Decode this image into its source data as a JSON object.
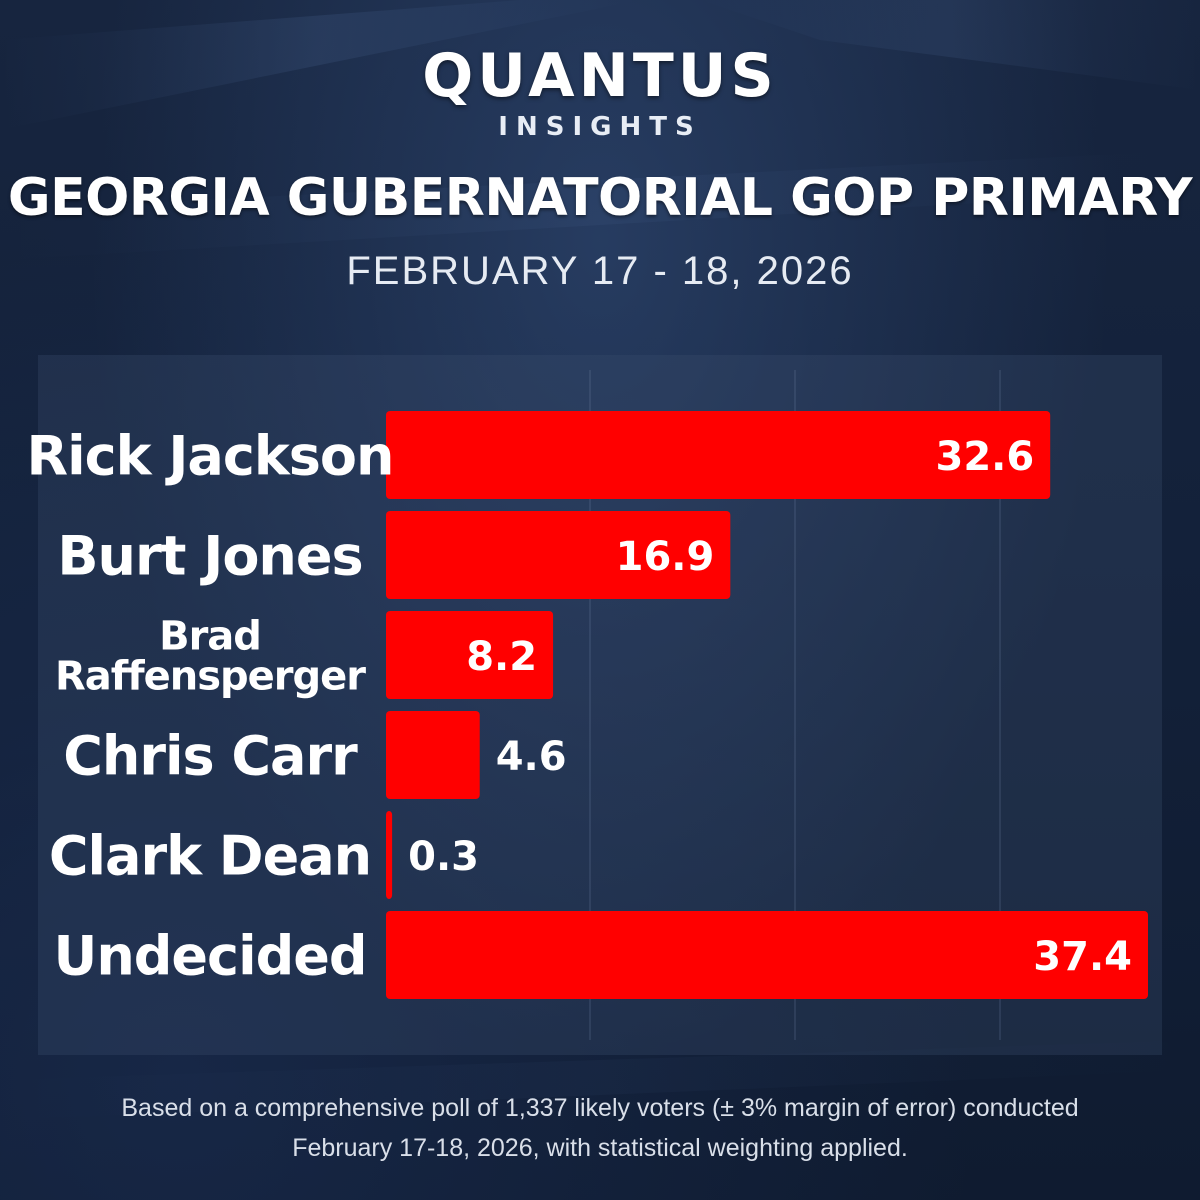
{
  "brand": {
    "name": "QUANTUS",
    "tagline": "INSIGHTS"
  },
  "header": {
    "title": "GEORGIA GUBERNATORIAL GOP PRIMARY",
    "date": "FEBRUARY 17 - 18, 2026"
  },
  "footnote": {
    "line1": "Based on a comprehensive poll of 1,337 likely voters (± 3% margin of error) conducted",
    "line2": "February 17-18, 2026, with statistical weighting applied."
  },
  "colors": {
    "bar": "#ff0000",
    "background": "#13213a",
    "text": "#ffffff"
  },
  "chart_data": {
    "type": "bar",
    "orientation": "horizontal",
    "categories": [
      [
        "Rick Jackson"
      ],
      [
        "Burt Jones"
      ],
      [
        "Brad",
        "Raffensperger"
      ],
      [
        "Chris Carr"
      ],
      [
        "Clark Dean"
      ],
      [
        "Undecided"
      ]
    ],
    "values": [
      32.6,
      16.9,
      8.2,
      4.6,
      0.3,
      37.4
    ],
    "value_labels": [
      "32.6",
      "16.9",
      "8.2",
      "4.6",
      "0.3",
      "37.4"
    ],
    "xlim": [
      0,
      37.4
    ],
    "grid": true,
    "legend": "none"
  }
}
